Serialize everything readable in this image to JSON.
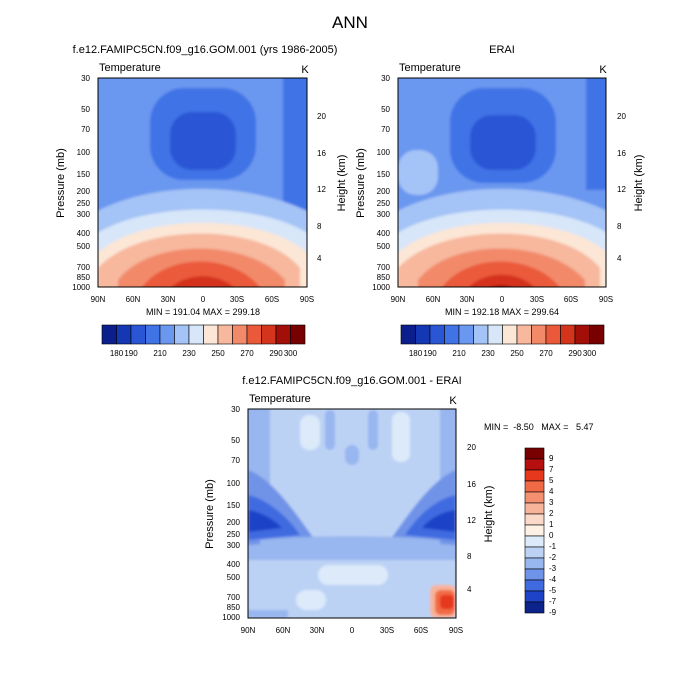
{
  "figure_title": "ANN",
  "chart_data": [
    {
      "type": "heatmap",
      "title": "f.e12.FAMIPC5CN.f09_g16.GOM.001 (yrs 1986-2005)",
      "variable_label": "Temperature",
      "units_label": "K",
      "xlabel": "",
      "ylabel": "Pressure (mb)",
      "y2label": "Height (km)",
      "x_tick_labels": [
        "90N",
        "60N",
        "30N",
        "0",
        "30S",
        "60S",
        "90S"
      ],
      "y_tick_labels": [
        "30",
        "50",
        "70",
        "100",
        "150",
        "200",
        "250",
        "300",
        "400",
        "500",
        "700",
        "850",
        "1000"
      ],
      "y2_tick_labels": [
        "20",
        "16",
        "12",
        "8",
        "4"
      ],
      "stats_text": "MIN = 191.04   MAX = 299.18",
      "min": 191.04,
      "max": 299.18,
      "contour_levels": [
        180,
        190,
        200,
        210,
        220,
        230,
        240,
        250,
        260,
        270,
        280,
        290,
        300
      ],
      "colorbar_labels": [
        "180",
        "190",
        "210",
        "230",
        "250",
        "270",
        "290",
        "300"
      ]
    },
    {
      "type": "heatmap",
      "title": "ERAI",
      "variable_label": "Temperature",
      "units_label": "K",
      "xlabel": "",
      "ylabel": "Pressure (mb)",
      "y2label": "Height (km)",
      "x_tick_labels": [
        "90N",
        "60N",
        "30N",
        "0",
        "30S",
        "60S",
        "90S"
      ],
      "y_tick_labels": [
        "30",
        "50",
        "70",
        "100",
        "150",
        "200",
        "250",
        "300",
        "400",
        "500",
        "700",
        "850",
        "1000"
      ],
      "y2_tick_labels": [
        "20",
        "16",
        "12",
        "8",
        "4"
      ],
      "stats_text": "MIN = 192.18   MAX = 299.64",
      "min": 192.18,
      "max": 299.64,
      "contour_levels": [
        180,
        190,
        200,
        210,
        220,
        230,
        240,
        250,
        260,
        270,
        280,
        290,
        300
      ],
      "colorbar_labels": [
        "180",
        "190",
        "210",
        "230",
        "250",
        "270",
        "290",
        "300"
      ]
    },
    {
      "type": "heatmap",
      "title": "f.e12.FAMIPC5CN.f09_g16.GOM.001 - ERAI",
      "variable_label": "Temperature",
      "units_label": "K",
      "xlabel": "",
      "ylabel": "Pressure (mb)",
      "y2label": "Height (km)",
      "x_tick_labels": [
        "90N",
        "60N",
        "30N",
        "0",
        "30S",
        "60S",
        "90S"
      ],
      "y_tick_labels": [
        "30",
        "50",
        "70",
        "100",
        "150",
        "200",
        "250",
        "300",
        "400",
        "500",
        "700",
        "850",
        "1000"
      ],
      "y2_tick_labels": [
        "20",
        "16",
        "12",
        "8",
        "4"
      ],
      "stats_text": "MIN =  -8.50   MAX =   5.47",
      "min": -8.5,
      "max": 5.47,
      "contour_levels": [
        9,
        7,
        5,
        4,
        3,
        2,
        1,
        0,
        -1,
        -2,
        -3,
        -4,
        -5,
        -7,
        -9
      ],
      "colorbar_labels": [
        "9",
        "7",
        "5",
        "4",
        "3",
        "2",
        "1",
        "0",
        "-1",
        "-2",
        "-3",
        "-4",
        "-5",
        "-7",
        "-9"
      ]
    }
  ],
  "colors": {
    "abs_palette": [
      "#0a1e8c",
      "#1437b4",
      "#2a56d6",
      "#3f73e6",
      "#6a97f0",
      "#a4c3f6",
      "#d7e6f9",
      "#fce6d6",
      "#f7b89e",
      "#f28a6a",
      "#ea5a3a",
      "#d4331c",
      "#a10f08",
      "#780000"
    ],
    "diff_palette": [
      "#780000",
      "#b50f0f",
      "#e5381c",
      "#f26a45",
      "#f48f6f",
      "#f7b49a",
      "#fbd9c8",
      "#fdf0e4",
      "#dceafa",
      "#bcd2f5",
      "#98b6ef",
      "#6f93e8",
      "#3f6ae0",
      "#1f43c8",
      "#0d238c"
    ]
  }
}
